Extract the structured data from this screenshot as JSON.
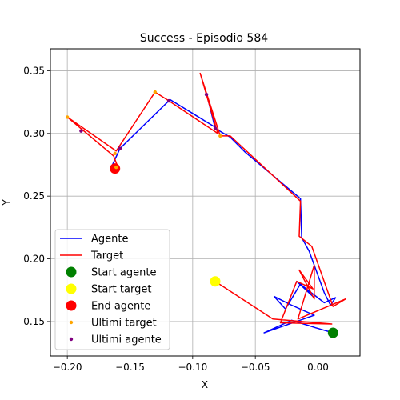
{
  "chart_data": {
    "type": "line",
    "title": "Success - Episodio 584",
    "xlabel": "X",
    "ylabel": "Y",
    "xlim": [
      -0.2135,
      0.0335
    ],
    "ylim": [
      0.1225,
      0.3675
    ],
    "xticks": [
      -0.2,
      -0.15,
      -0.1,
      -0.05,
      0.0
    ],
    "xtick_labels": [
      "−0.20",
      "−0.15",
      "−0.10",
      "−0.05",
      "0.00"
    ],
    "yticks": [
      0.15,
      0.2,
      0.25,
      0.3,
      0.35
    ],
    "ytick_labels": [
      "0.15",
      "0.20",
      "0.25",
      "0.30",
      "0.35"
    ],
    "grid": true,
    "legend_position": "lower-left",
    "series": [
      {
        "name": "Agente",
        "kind": "line",
        "color": "#0000ff",
        "points": [
          [
            0.012,
            0.141
          ],
          [
            -0.002,
            0.145
          ],
          [
            -0.021,
            0.151
          ],
          [
            -0.043,
            0.141
          ],
          [
            -0.003,
            0.155
          ],
          [
            -0.021,
            0.163
          ],
          [
            -0.035,
            0.17
          ],
          [
            -0.026,
            0.16
          ],
          [
            -0.014,
            0.18
          ],
          [
            -0.004,
            0.17
          ],
          [
            -0.017,
            0.182
          ],
          [
            0.005,
            0.165
          ],
          [
            0.014,
            0.169
          ],
          [
            0.01,
            0.163
          ],
          [
            0.005,
            0.173
          ],
          [
            -0.007,
            0.206
          ],
          [
            -0.013,
            0.217
          ],
          [
            -0.014,
            0.248
          ],
          [
            -0.058,
            0.285
          ],
          [
            -0.07,
            0.297
          ],
          [
            -0.082,
            0.304
          ],
          [
            -0.089,
            0.332
          ],
          [
            -0.082,
            0.305
          ],
          [
            -0.118,
            0.327
          ],
          [
            -0.158,
            0.288
          ],
          [
            -0.164,
            0.275
          ],
          [
            -0.162,
            0.272
          ]
        ]
      },
      {
        "name": "Target",
        "kind": "line",
        "color": "#ff0000",
        "points": [
          [
            -0.082,
            0.182
          ],
          [
            -0.036,
            0.152
          ],
          [
            0.011,
            0.148
          ],
          [
            -0.03,
            0.149
          ],
          [
            -0.017,
            0.182
          ],
          [
            -0.004,
            0.176
          ],
          [
            -0.015,
            0.191
          ],
          [
            -0.003,
            0.168
          ],
          [
            -0.003,
            0.195
          ],
          [
            -0.016,
            0.152
          ],
          [
            0.022,
            0.168
          ],
          [
            0.012,
            0.162
          ],
          [
            -0.005,
            0.21
          ],
          [
            -0.015,
            0.218
          ],
          [
            -0.014,
            0.246
          ],
          [
            -0.07,
            0.298
          ],
          [
            -0.078,
            0.298
          ],
          [
            -0.094,
            0.348
          ],
          [
            -0.08,
            0.3
          ],
          [
            -0.119,
            0.326
          ],
          [
            -0.13,
            0.333
          ],
          [
            -0.161,
            0.286
          ],
          [
            -0.2,
            0.313
          ],
          [
            -0.163,
            0.282
          ],
          [
            -0.16,
            0.274
          ],
          [
            -0.162,
            0.272
          ]
        ]
      },
      {
        "name": "Start agente",
        "kind": "marker",
        "color": "#008000",
        "points": [
          [
            0.012,
            0.141
          ]
        ]
      },
      {
        "name": "Start target",
        "kind": "marker",
        "color": "#ffff00",
        "points": [
          [
            -0.082,
            0.182
          ]
        ]
      },
      {
        "name": "End agente",
        "kind": "marker",
        "color": "#ff0000",
        "points": [
          [
            -0.162,
            0.272
          ]
        ]
      },
      {
        "name": "Ultimi target",
        "kind": "dots",
        "color": "#ffa500",
        "points": [
          [
            -0.2,
            0.313
          ],
          [
            -0.13,
            0.333
          ],
          [
            -0.078,
            0.298
          ],
          [
            -0.162,
            0.284
          ],
          [
            -0.161,
            0.273
          ]
        ]
      },
      {
        "name": "Ultimi agente",
        "kind": "dots",
        "color": "#800080",
        "points": [
          [
            -0.189,
            0.302
          ],
          [
            -0.158,
            0.288
          ],
          [
            -0.119,
            0.326
          ],
          [
            -0.089,
            0.331
          ],
          [
            -0.082,
            0.304
          ]
        ]
      }
    ]
  }
}
